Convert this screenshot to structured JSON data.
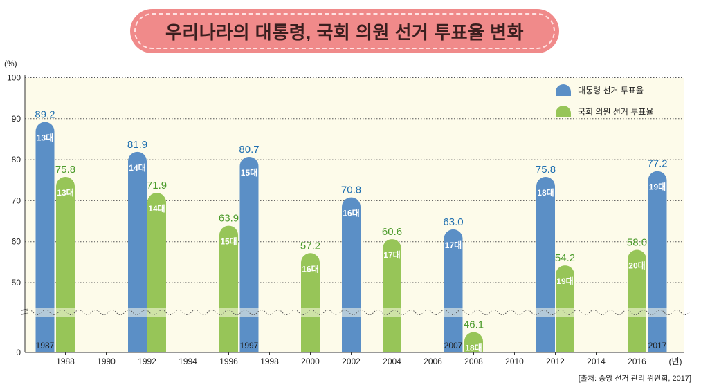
{
  "title": "우리나라의 대통령, 국회 의원 선거 투표율 변화",
  "source": "[출처: 중앙 선거 관리 위원회, 2017]",
  "colors": {
    "presidential": "#5b8fc6",
    "parliamentary": "#97c558",
    "plot_bg": "#fdfbea",
    "pres_label": "#1f6fb0",
    "parl_label": "#4a9a2a"
  },
  "chart_data": {
    "type": "bar",
    "y_unit": "(%)",
    "x_unit": "(년)",
    "ylim": [
      0,
      100
    ],
    "y_ticks": [
      0,
      50,
      60,
      70,
      80,
      90,
      100
    ],
    "x_ticks": [
      "1988",
      "1990",
      "1992",
      "1994",
      "1996",
      "1998",
      "2000",
      "2002",
      "2004",
      "2006",
      "2008",
      "2010",
      "2012",
      "2014",
      "2016"
    ],
    "axis_break": true,
    "grid": true,
    "legend_position": "top-right",
    "series": [
      {
        "name": "대통령 선거 투표율",
        "points": [
          {
            "year": 1987,
            "value": 89.2,
            "label": "13대",
            "year_label": "1987"
          },
          {
            "year": 1992,
            "value": 81.9,
            "label": "14대"
          },
          {
            "year": 1997,
            "value": 80.7,
            "label": "15대",
            "year_label": "1997"
          },
          {
            "year": 2002,
            "value": 70.8,
            "label": "16대"
          },
          {
            "year": 2007,
            "value": 63.0,
            "label": "17대",
            "year_label": "2007"
          },
          {
            "year": 2012,
            "value": 75.8,
            "label": "18대"
          },
          {
            "year": 2017,
            "value": 77.2,
            "label": "19대",
            "year_label": "2017"
          }
        ]
      },
      {
        "name": "국회 의원 선거 투표율",
        "points": [
          {
            "year": 1988,
            "value": 75.8,
            "label": "13대"
          },
          {
            "year": 1992,
            "value": 71.9,
            "label": "14대"
          },
          {
            "year": 1996,
            "value": 63.9,
            "label": "15대"
          },
          {
            "year": 2000,
            "value": 57.2,
            "label": "16대"
          },
          {
            "year": 2004,
            "value": 60.6,
            "label": "17대"
          },
          {
            "year": 2008,
            "value": 46.1,
            "label": "18대"
          },
          {
            "year": 2012,
            "value": 54.2,
            "label": "19대"
          },
          {
            "year": 2016,
            "value": 58.0,
            "label": "20대"
          }
        ]
      }
    ]
  }
}
